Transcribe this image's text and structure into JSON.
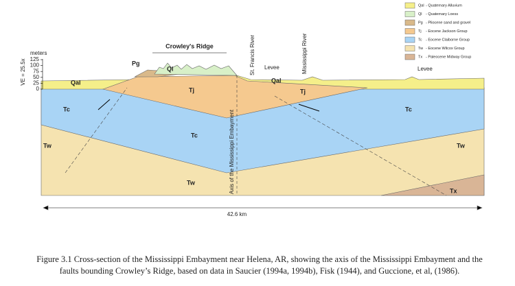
{
  "legend": [
    {
      "code": "Qal",
      "label": "- Quaternary Alluvium"
    },
    {
      "code": "Ql",
      "label": "- Quaternary Loess"
    },
    {
      "code": "Pg",
      "label": "- Pliocene sand and gravel"
    },
    {
      "code": "Tj",
      "label": "- Eocene Jackson Group"
    },
    {
      "code": "Tc",
      "label": "- Eocene Claiborne Group"
    },
    {
      "code": "Tw",
      "label": "- Eocene Wilcox Group"
    },
    {
      "code": "Tx",
      "label": "- Paleocene Midway Group"
    }
  ],
  "scale": {
    "unit": "meters",
    "ticks": [
      125,
      100,
      75,
      50,
      25,
      0
    ],
    "ve": "VE = 25.5x"
  },
  "labels": {
    "crowleys_ridge": "Crowley's Ridge",
    "ql": "Ql",
    "pg": "Pg",
    "qal_left": "Qal",
    "qal_right": "Qal",
    "tj_left": "Tj",
    "tj_right": "Tj",
    "tc_left": "Tc",
    "tc_center": "Tc",
    "tc_right": "Tc",
    "tw_left": "Tw",
    "tw_center": "Tw",
    "tw_right": "Tw",
    "tx": "Tx",
    "st_francis": "St. Francis River",
    "levee_left": "Levee",
    "mississippi": "Mississippi River",
    "levee_right": "Levee",
    "axis": "Axis of the Mississippi Embayment",
    "distance": "42.6 km"
  },
  "caption": [
    "Figure 3.1   Cross-section of the Mississippi Embayment near Helena, AR, showing the axis of the Mississippi Embayment and the",
    "faults bounding Crowley’s Ridge, based on data in Saucier (1994a, 1994b), Fisk (1944), and Guccione, et al, (1986)."
  ]
}
